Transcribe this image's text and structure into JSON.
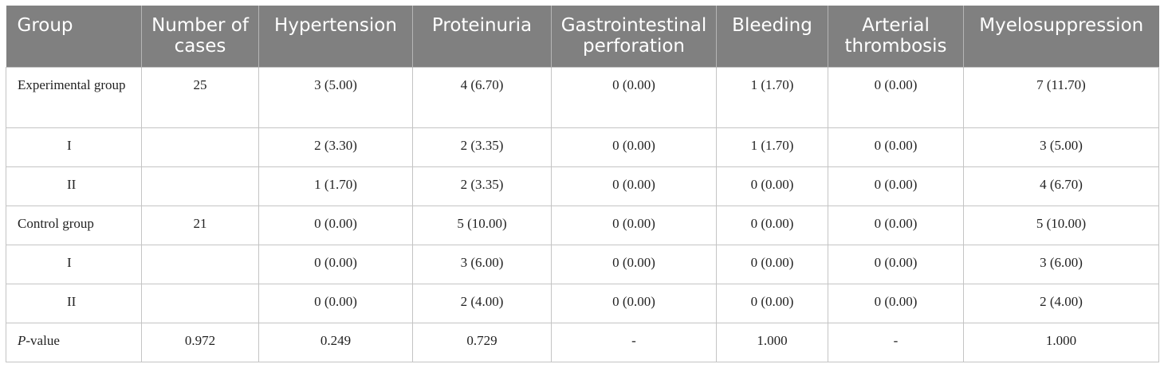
{
  "headers": [
    "Group",
    "Number of cases",
    "Hypertension",
    "Proteinuria",
    "Gastrointestinal perforation",
    "Bleeding",
    "Arterial thrombosis",
    "Myelosuppression"
  ],
  "rows": [
    {
      "group": "Experimental group",
      "cases": "25",
      "vals": [
        "3 (5.00)",
        "4 (6.70)",
        "0 (0.00)",
        "1 (1.70)",
        "0 (0.00)",
        "7 (11.70)"
      ]
    },
    {
      "group": "I",
      "cases": "",
      "vals": [
        "2 (3.30)",
        "2 (3.35)",
        "0 (0.00)",
        "1 (1.70)",
        "0 (0.00)",
        "3 (5.00)"
      ]
    },
    {
      "group": "II",
      "cases": "",
      "vals": [
        "1 (1.70)",
        "2 (3.35)",
        "0 (0.00)",
        "0 (0.00)",
        "0 (0.00)",
        "4 (6.70)"
      ]
    },
    {
      "group": "Control group",
      "cases": "21",
      "vals": [
        "0 (0.00)",
        "5 (10.00)",
        "0 (0.00)",
        "0 (0.00)",
        "0 (0.00)",
        "5 (10.00)"
      ]
    },
    {
      "group": "I",
      "cases": "",
      "vals": [
        "0 (0.00)",
        "3 (6.00)",
        "0 (0.00)",
        "0 (0.00)",
        "0 (0.00)",
        "3 (6.00)"
      ]
    },
    {
      "group": "II",
      "cases": "",
      "vals": [
        "0 (0.00)",
        "2 (4.00)",
        "0 (0.00)",
        "0 (0.00)",
        "0 (0.00)",
        "2 (4.00)"
      ]
    },
    {
      "group_italic": "P",
      "group": "-value",
      "cases": "0.972",
      "vals": [
        "0.249",
        "0.729",
        "-",
        "1.000",
        "-",
        "1.000"
      ]
    }
  ]
}
